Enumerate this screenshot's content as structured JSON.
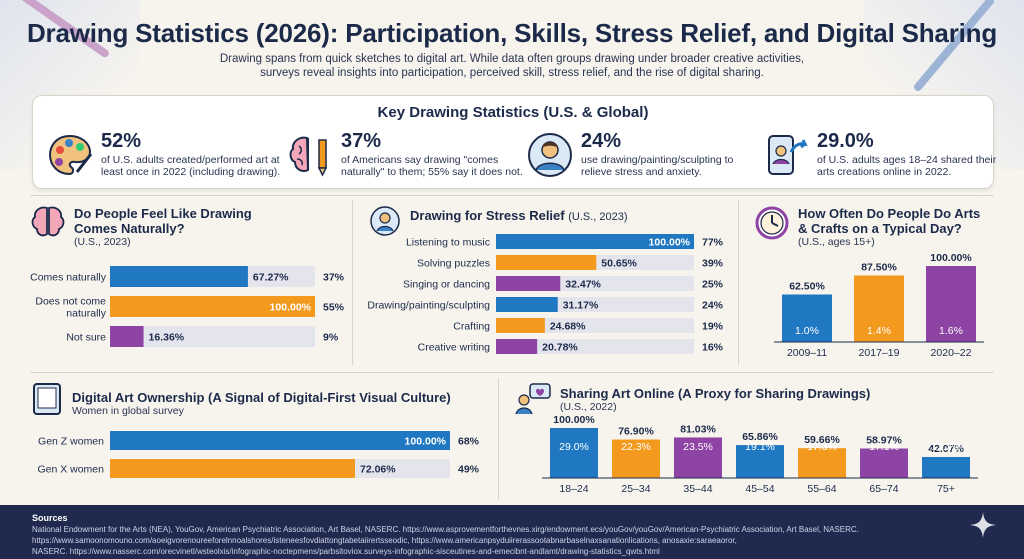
{
  "header": {
    "title": "Drawing Statistics (2026): Participation, Skills, Stress Relief, and Digital Sharing",
    "subtitle_line1": "Drawing spans from quick sketches to digital art. While data often groups drawing under broader creative activities,",
    "subtitle_line2": "surveys reveal insights into participation, perceived skill, stress relief, and the rise of digital sharing."
  },
  "key_stats": {
    "title": "Key Drawing Statistics (U.S. & Global)",
    "items": [
      {
        "icon": "palette-icon",
        "value": "52%",
        "desc1": "of U.S. adults created/performed art at",
        "desc2": "least once in 2022 (including drawing)."
      },
      {
        "icon": "brain-pencil-icon",
        "value": "37%",
        "desc1": "of Americans say drawing \"comes",
        "desc2": "naturally\" to them; 55% say it does not."
      },
      {
        "icon": "person-icon",
        "value": "24%",
        "desc1": "use drawing/painting/sculpting to",
        "desc2": "relieve stress and anxiety."
      },
      {
        "icon": "phone-share-icon",
        "value": "29.0%",
        "desc1": "of U.S. adults ages 18–24 shared their",
        "desc2": "arts creations online in 2022."
      }
    ]
  },
  "colors": {
    "blue": "#1f78c1",
    "orange": "#f39a1e",
    "purple": "#8e44a4",
    "track": "#e4e4ec",
    "navy": "#1c2a4a"
  },
  "chart_data": [
    {
      "id": "naturally",
      "type": "bar",
      "orientation": "horizontal",
      "title": "Do People Feel Like Drawing Comes Naturally?",
      "title_line1": "Do People Feel Like Drawing",
      "title_line2": "Comes Naturally?",
      "subtitle": "(U.S., 2023)",
      "categories": [
        "Comes naturally",
        "Does not come naturally",
        "Not sure"
      ],
      "category_lines": [
        [
          "Comes naturally"
        ],
        [
          "Does not come",
          "naturally"
        ],
        [
          "Not sure"
        ]
      ],
      "values": [
        37,
        55,
        9
      ],
      "value_labels": [
        "37%",
        "55%",
        "9%"
      ],
      "bar_labels": [
        "67.27%",
        "100.00%",
        "16.36%"
      ],
      "colors": [
        "blue",
        "orange",
        "purple"
      ],
      "xlim": [
        0,
        55
      ]
    },
    {
      "id": "stress",
      "type": "bar",
      "orientation": "horizontal",
      "title": "Drawing for Stress Relief",
      "subtitle": "(U.S., 2023)",
      "categories": [
        "Listening to music",
        "Solving puzzles",
        "Singing or dancing",
        "Drawing/painting/sculpting",
        "Crafting",
        "Creative writing"
      ],
      "values": [
        77,
        39,
        25,
        24,
        19,
        16
      ],
      "value_labels": [
        "77%",
        "39%",
        "25%",
        "24%",
        "19%",
        "16%"
      ],
      "bar_labels": [
        "100.00%",
        "50.65%",
        "32.47%",
        "31.17%",
        "24.68%",
        "20.78%"
      ],
      "colors": [
        "blue",
        "orange",
        "purple",
        "blue",
        "orange",
        "purple"
      ],
      "xlim": [
        0,
        77
      ]
    },
    {
      "id": "often",
      "type": "bar",
      "orientation": "vertical",
      "title": "How Often Do People Do Arts & Crafts on a Typical Day?",
      "title_line1": "How Often Do People Do Arts",
      "title_line2": "& Crafts on a Typical Day?",
      "subtitle": "(U.S., ages 15+)",
      "categories": [
        "2009–11",
        "2017–19",
        "2020–22"
      ],
      "values": [
        1.0,
        1.4,
        1.6
      ],
      "value_labels": [
        "1.0%",
        "1.4%",
        "1.6%"
      ],
      "top_labels": [
        "62.50%",
        "87.50%",
        "100.00%"
      ],
      "colors": [
        "blue",
        "orange",
        "purple"
      ],
      "ylim": [
        0,
        1.6
      ]
    },
    {
      "id": "ownership",
      "type": "bar",
      "orientation": "horizontal",
      "title": "Digital Art Ownership (A Signal of Digital-First Visual Culture)",
      "subtitle": "Women in global survey",
      "categories": [
        "Gen Z women",
        "Gen X women"
      ],
      "values": [
        68,
        49
      ],
      "value_labels": [
        "68%",
        "49%"
      ],
      "bar_labels": [
        "100.00%",
        "72.06%"
      ],
      "colors": [
        "blue",
        "orange"
      ],
      "xlim": [
        0,
        68
      ]
    },
    {
      "id": "sharing",
      "type": "bar",
      "orientation": "vertical",
      "title": "Sharing Art Online (A Proxy for Sharing Drawings)",
      "subtitle": "(U.S., 2022)",
      "categories": [
        "18–24",
        "25–34",
        "35–44",
        "45–54",
        "55–64",
        "65–74",
        "75+"
      ],
      "values": [
        29.0,
        22.3,
        23.5,
        19.1,
        17.3,
        17.1,
        12.2
      ],
      "value_labels": [
        "29.0%",
        "22.3%",
        "23.5%",
        "19.1%",
        "17.3%",
        "17.1%",
        "12.2%"
      ],
      "top_labels": [
        "100.00%",
        "76.90%",
        "81.03%",
        "65.86%",
        "59.66%",
        "58.97%",
        "42.07%"
      ],
      "colors": [
        "blue",
        "orange",
        "purple",
        "blue",
        "orange",
        "purple",
        "blue"
      ],
      "ylim": [
        0,
        29.0
      ]
    }
  ],
  "sources": {
    "heading": "Sources",
    "line1": "National Endowment for the Arts (NEA), YouGov, American Psychiatric Association, Art Basel, NASERC. https://www.asprovementforthevnes.xirg/endowment.ecs/youGov/youGov/American-Psychiatric Association, Art Basel, NASERC.",
    "line2": "https://www.samoonomouno.com/aoeigvorenoureeforelnnoalshores/isteneesfovdiattongtabetaiirertsseodic, https://www.americanpsyduiirerassootabnarbaselnaxsanationlications, anosaxie:saraeaoror,",
    "line3": "NASERC. https://www.nasserc.com/orecvinetl/wsteolxis/infographic-noctepmens/parbsitoviox.surveys-infographic-sisceutines-and-emecibnt-andlamt/drawing-statistics_qwts.html"
  }
}
